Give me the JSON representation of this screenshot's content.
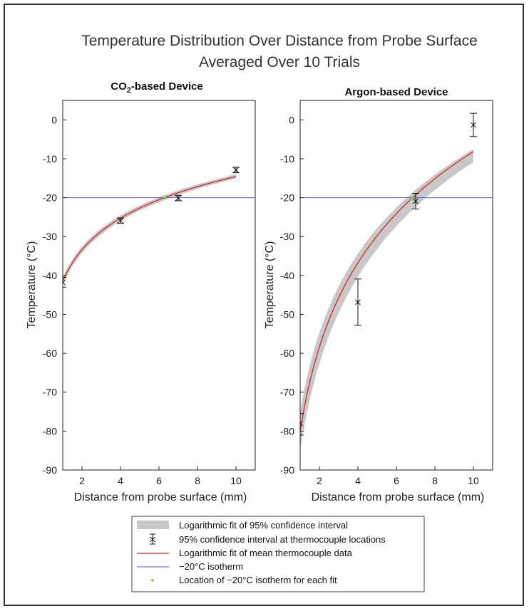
{
  "title_line1": "Temperature Distribution Over Distance from Probe Surface",
  "title_line2": "Averaged Over 10 Trials",
  "colors": {
    "fit_line": "#d62728",
    "ci_band": "#c8c8c8",
    "isotherm": "#5555ee",
    "isotherm_point": "#66dd22",
    "errorbar": "#111111"
  },
  "legend": [
    {
      "key": "band",
      "label": "Logarithmic fit of 95% confidence interval"
    },
    {
      "key": "errorbar",
      "label": "95% confidence interval at thermocouple locations"
    },
    {
      "key": "fit",
      "label": "Logarithmic fit of mean thermocouple data"
    },
    {
      "key": "isotherm",
      "label": "−20°C isotherm"
    },
    {
      "key": "point",
      "label": "Location of −20°C isotherm for each fit"
    }
  ],
  "chart_data": [
    {
      "type": "line",
      "title_main": "CO",
      "title_sub": "2",
      "title_rest": "-based Device",
      "xlabel": "Distance from probe surface (mm)",
      "ylabel": "Temperature (°C)",
      "xlim": [
        1,
        11
      ],
      "ylim": [
        -90,
        5
      ],
      "xticks": [
        2,
        4,
        6,
        8,
        10
      ],
      "yticks": [
        0,
        -10,
        -20,
        -30,
        -40,
        -50,
        -60,
        -70,
        -80,
        -90
      ],
      "grid": false,
      "points": [
        {
          "x": 1,
          "y": -41.8,
          "lo": -43.0,
          "hi": -40.5
        },
        {
          "x": 4,
          "y": -25.9,
          "lo": -26.6,
          "hi": -25.2
        },
        {
          "x": 7,
          "y": -20.1,
          "lo": -20.8,
          "hi": -19.4
        },
        {
          "x": 10,
          "y": -12.9,
          "lo": -13.6,
          "hi": -12.2
        }
      ],
      "fit": {
        "a": -41.5,
        "b": 11.7,
        "x_range": [
          1,
          10
        ]
      },
      "ci_fit": {
        "a_lo": -42.5,
        "b_lo": 11.9,
        "a_hi": -40.5,
        "b_hi": 11.5
      },
      "isotherm_y": -20,
      "isotherm_x": 6.3
    },
    {
      "type": "line",
      "title_main": "Argon-based Device",
      "title_sub": "",
      "title_rest": "",
      "xlabel": "Distance from probe surface (mm)",
      "ylabel": "Temperature (°C)",
      "xlim": [
        1,
        11
      ],
      "ylim": [
        -90,
        5
      ],
      "xticks": [
        2,
        4,
        6,
        8,
        10
      ],
      "yticks": [
        0,
        -10,
        -20,
        -30,
        -40,
        -50,
        -60,
        -70,
        -80,
        -90
      ],
      "grid": false,
      "points": [
        {
          "x": 1,
          "y": -78.0,
          "lo": -81.0,
          "hi": -75.5
        },
        {
          "x": 4,
          "y": -46.9,
          "lo": -52.8,
          "hi": -40.9
        },
        {
          "x": 7,
          "y": -20.9,
          "lo": -22.9,
          "hi": -18.9
        },
        {
          "x": 10,
          "y": -1.3,
          "lo": -4.3,
          "hi": 1.7
        }
      ],
      "fit": {
        "a": -80.0,
        "b": 31.2,
        "x_range": [
          1,
          10
        ]
      },
      "ci_fit": {
        "a_lo": -85.0,
        "b_lo": 32.2,
        "a_hi": -75.0,
        "b_hi": 29.3
      },
      "isotherm_y": -20,
      "isotherm_x": 6.8
    }
  ]
}
